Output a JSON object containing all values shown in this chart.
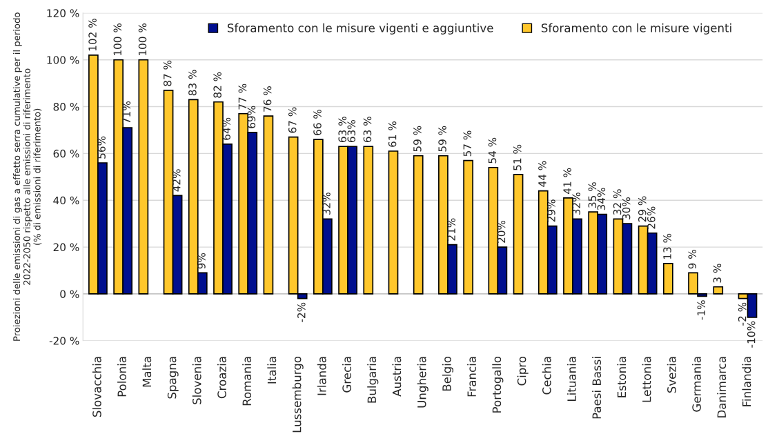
{
  "chart_data": {
    "type": "bar",
    "ylabel": "Proiezioni delle emissioni di gas a effetto serra cumulative per il periodo\n2022-2050 rispetto alle emissioni di riferimento\n(% di emissioni di riferimento)",
    "categories": [
      "Slovacchia",
      "Polonia",
      "Malta",
      "Spagna",
      "Slovenia",
      "Croazia",
      "Romania",
      "Italia",
      "Lussemburgo",
      "Irlanda",
      "Grecia",
      "Bulgaria",
      "Austria",
      "Ungheria",
      "Belgio",
      "Francia",
      "Portogallo",
      "Cipro",
      "Cechia",
      "Lituania",
      "Paesi Bassi",
      "Estonia",
      "Lettonia",
      "Svezia",
      "Germania",
      "Danimarca",
      "Finlandia"
    ],
    "series": [
      {
        "name": "Sforamento con le misure vigenti",
        "color": "#ffc72c",
        "values": [
          102,
          100,
          100,
          87,
          83,
          82,
          77,
          76,
          67,
          66,
          63,
          63,
          61,
          59,
          59,
          57,
          54,
          51,
          44,
          41,
          35,
          32,
          29,
          13,
          9,
          3,
          -2
        ],
        "value_labels": [
          "102 %",
          "100 %",
          "100 %",
          "87 %",
          "83 %",
          "82 %",
          "77 %",
          "76 %",
          "67 %",
          "66 %",
          "63 %",
          "63 %",
          "61 %",
          "59 %",
          "59 %",
          "57 %",
          "54 %",
          "51 %",
          "44 %",
          "41 %",
          "35 %",
          "32 %",
          "29 %",
          "13 %",
          "9 %",
          "3 %",
          "-2 %"
        ]
      },
      {
        "name": "Sforamento con le misure vigenti e aggiuntive",
        "color": "#000f8f",
        "values": [
          56,
          71,
          null,
          42,
          9,
          64,
          69,
          null,
          -2,
          32,
          63,
          null,
          null,
          null,
          21,
          null,
          20,
          null,
          29,
          32,
          34,
          30,
          26,
          null,
          -1,
          null,
          -10
        ],
        "value_labels": [
          "56%",
          "71%",
          null,
          "42%",
          "9%",
          "64%",
          "69%",
          null,
          "-2%",
          "32%",
          "63%",
          null,
          null,
          null,
          "21%",
          null,
          "20%",
          null,
          "29%",
          "32%",
          "34%",
          "30%",
          "26%",
          null,
          "-1%",
          null,
          "-10%"
        ]
      }
    ],
    "ylim": [
      -20,
      120
    ],
    "yticks": [
      {
        "value": -20,
        "label": "-20 %"
      },
      {
        "value": 0,
        "label": "0 %"
      },
      {
        "value": 20,
        "label": "20 %"
      },
      {
        "value": 40,
        "label": "40 %"
      },
      {
        "value": 60,
        "label": "60 %"
      },
      {
        "value": 80,
        "label": "80 %"
      },
      {
        "value": 100,
        "label": "100 %"
      },
      {
        "value": 120,
        "label": "120 %"
      }
    ],
    "grid": "y",
    "legend": "top"
  }
}
